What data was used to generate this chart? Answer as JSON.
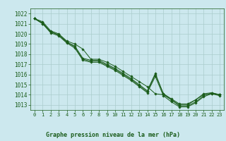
{
  "title": "Graphe pression niveau de la mer (hPa)",
  "bg_color": "#cce8ee",
  "grid_color": "#aacccc",
  "line_color": "#1a5c1a",
  "marker_color": "#1a5c1a",
  "xlim": [
    -0.5,
    23.5
  ],
  "ylim": [
    1012.5,
    1022.5
  ],
  "yticks": [
    1013,
    1014,
    1015,
    1016,
    1017,
    1018,
    1019,
    1020,
    1021,
    1022
  ],
  "xticks": [
    0,
    1,
    2,
    3,
    4,
    5,
    6,
    7,
    8,
    9,
    10,
    11,
    12,
    13,
    14,
    15,
    16,
    17,
    18,
    19,
    20,
    21,
    22,
    23
  ],
  "series": [
    [
      1021.5,
      1021.0,
      1020.2,
      1019.9,
      1019.2,
      1018.7,
      1017.5,
      1017.3,
      1017.3,
      1016.9,
      1016.5,
      1016.0,
      1015.5,
      1014.9,
      1014.3,
      1016.0,
      1014.1,
      1013.5,
      1012.9,
      1012.9,
      1013.3,
      1013.9,
      1014.2,
      1014.0
    ],
    [
      1021.5,
      1021.2,
      1020.3,
      1020.0,
      1019.3,
      1019.0,
      1018.5,
      1017.5,
      1017.5,
      1017.2,
      1016.8,
      1016.3,
      1015.8,
      1015.3,
      1014.8,
      1014.1,
      1014.0,
      1013.5,
      1013.0,
      1013.0,
      1013.5,
      1014.0,
      1014.1,
      1014.0
    ],
    [
      1021.5,
      1021.0,
      1020.1,
      1019.8,
      1019.1,
      1018.6,
      1017.4,
      1017.2,
      1017.2,
      1016.8,
      1016.4,
      1015.9,
      1015.4,
      1014.8,
      1014.2,
      1015.8,
      1013.9,
      1013.3,
      1012.8,
      1012.8,
      1013.2,
      1013.8,
      1014.1,
      1013.9
    ],
    [
      1021.5,
      1021.1,
      1020.2,
      1019.9,
      1019.2,
      1018.8,
      1017.6,
      1017.4,
      1017.4,
      1017.0,
      1016.6,
      1016.1,
      1015.6,
      1015.0,
      1014.4,
      1016.1,
      1014.1,
      1013.6,
      1013.1,
      1013.1,
      1013.5,
      1014.1,
      1014.2,
      1014.0
    ]
  ]
}
